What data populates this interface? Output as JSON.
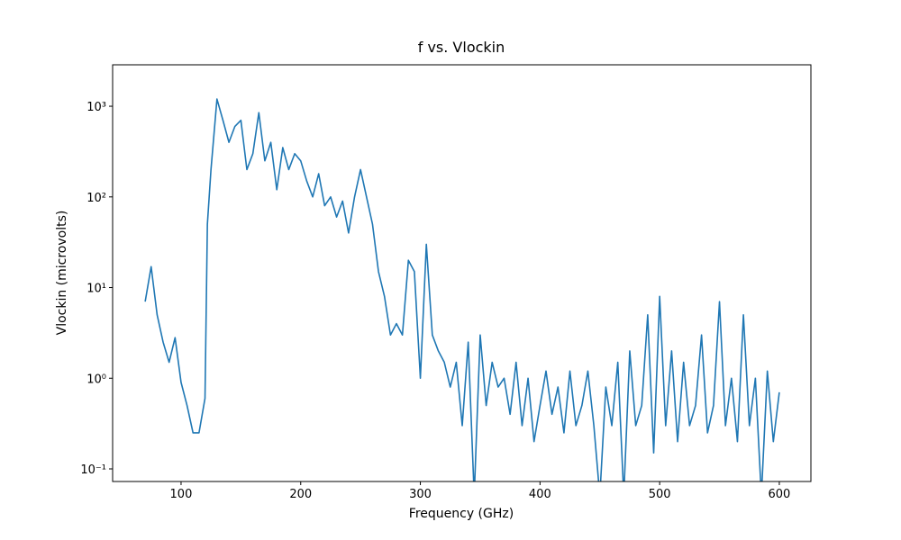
{
  "chart_data": {
    "type": "line",
    "title": "f vs. Vlockin",
    "x_label": "Frequency (GHz)",
    "y_label": "Vlockin (microvolts)",
    "x": [
      70,
      75,
      80,
      85,
      90,
      95,
      100,
      105,
      110,
      115,
      120,
      122,
      125,
      130,
      135,
      140,
      145,
      150,
      155,
      160,
      165,
      170,
      175,
      180,
      185,
      190,
      195,
      200,
      205,
      210,
      215,
      220,
      225,
      230,
      235,
      240,
      245,
      250,
      255,
      260,
      265,
      270,
      275,
      280,
      285,
      290,
      295,
      300,
      305,
      310,
      315,
      320,
      325,
      330,
      335,
      340,
      345,
      350,
      355,
      360,
      365,
      370,
      375,
      380,
      385,
      390,
      395,
      400,
      405,
      410,
      415,
      420,
      425,
      430,
      435,
      440,
      445,
      450,
      455,
      460,
      465,
      470,
      475,
      480,
      485,
      490,
      495,
      500,
      505,
      510,
      515,
      520,
      525,
      530,
      535,
      540,
      545,
      550,
      555,
      560,
      565,
      570,
      575,
      580,
      585,
      590,
      595,
      600
    ],
    "series": [
      {
        "name": "Vlockin",
        "color": "#1f77b4",
        "values": [
          7,
          17,
          5,
          2.5,
          1.5,
          2.8,
          0.9,
          0.5,
          0.25,
          0.25,
          0.6,
          50,
          200,
          1200,
          700,
          400,
          600,
          700,
          200,
          300,
          850,
          250,
          400,
          120,
          350,
          200,
          300,
          250,
          150,
          100,
          180,
          80,
          100,
          60,
          90,
          40,
          100,
          200,
          100,
          50,
          15,
          8,
          3,
          4,
          3,
          20,
          15,
          1.0,
          30,
          3,
          2,
          1.5,
          0.8,
          1.5,
          0.3,
          2.5,
          0.05,
          3,
          0.5,
          1.5,
          0.8,
          1.0,
          0.4,
          1.5,
          0.3,
          1.0,
          0.2,
          0.5,
          1.2,
          0.4,
          0.8,
          0.25,
          1.2,
          0.3,
          0.5,
          1.2,
          0.3,
          0.05,
          0.8,
          0.3,
          1.5,
          0.05,
          2.0,
          0.3,
          0.5,
          5,
          0.15,
          8,
          0.3,
          2,
          0.2,
          1.5,
          0.3,
          0.5,
          3,
          0.25,
          0.5,
          7,
          0.3,
          1.0,
          0.2,
          5,
          0.3,
          1,
          0.05,
          1.2,
          0.2,
          0.7
        ]
      }
    ],
    "xlim": [
      42.8,
      626.4
    ],
    "xticks": [
      100,
      200,
      300,
      400,
      500,
      600
    ],
    "ylim": [
      0.0726,
      2865
    ],
    "y_log": true,
    "yticks": [
      {
        "value": 0.1,
        "label": "10⁻¹"
      },
      {
        "value": 1,
        "label": "10⁰"
      },
      {
        "value": 10,
        "label": "10¹"
      },
      {
        "value": 100,
        "label": "10²"
      },
      {
        "value": 1000,
        "label": "10³"
      }
    ]
  }
}
